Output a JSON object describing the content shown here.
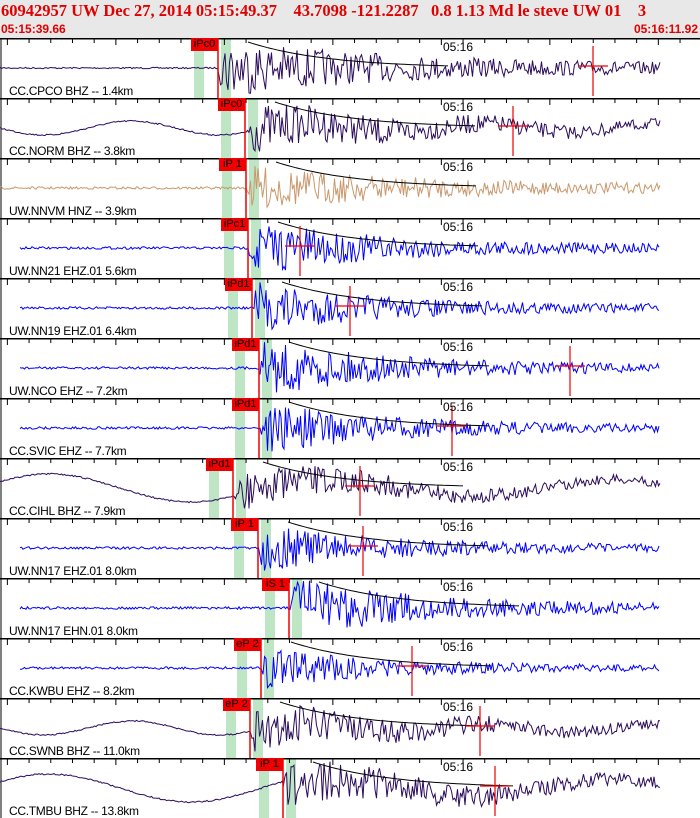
{
  "header": {
    "title": "60942957 UW Dec 27, 2014 05:15:49.37    43.7098 -121.2287   0.8 1.13 Md le steve UW 01    3",
    "start_time": "05:15:39.66",
    "end_time": "05:16:11.92"
  },
  "time_mark": "05:16",
  "colors": {
    "broadband": "#2b0b5c",
    "strong_motion": "#c9986c",
    "short_period": "#0000ff",
    "pick": "#f00000",
    "band": "#bfe6c4"
  },
  "traces": [
    {
      "station": "CC.CPCO BHZ -- 1.4km",
      "pick": "iPc0"
    },
    {
      "station": "CC.NORM BHZ -- 3.8km",
      "pick": "iPc0"
    },
    {
      "station": "UW.NNVM HNZ -- 3.9km",
      "pick": "iP 1"
    },
    {
      "station": "UW.NN21 EHZ.01 5.6km",
      "pick": "iPc1"
    },
    {
      "station": "UW.NN19 EHZ.01 6.4km",
      "pick": "iPd1"
    },
    {
      "station": "UW.NCO EHZ -- 7.2km",
      "pick": "iPd1"
    },
    {
      "station": "CC.SVIC EHZ -- 7.7km",
      "pick": "iPd1"
    },
    {
      "station": "CC.CIHL BHZ -- 7.9km",
      "pick": "iPd1"
    },
    {
      "station": "UW.NN17 EHZ.01 8.0km",
      "pick": "iP 1"
    },
    {
      "station": "UW.NN17 EHN.01 8.0km",
      "pick": "iS 1"
    },
    {
      "station": "CC.KWBU EHZ -- 8.2km",
      "pick": "eP 2"
    },
    {
      "station": "CC.SWNB BHZ -- 11.0km",
      "pick": "eP 2"
    },
    {
      "station": "CC.TMBU BHZ -- 13.8km",
      "pick": "iP 1"
    }
  ]
}
